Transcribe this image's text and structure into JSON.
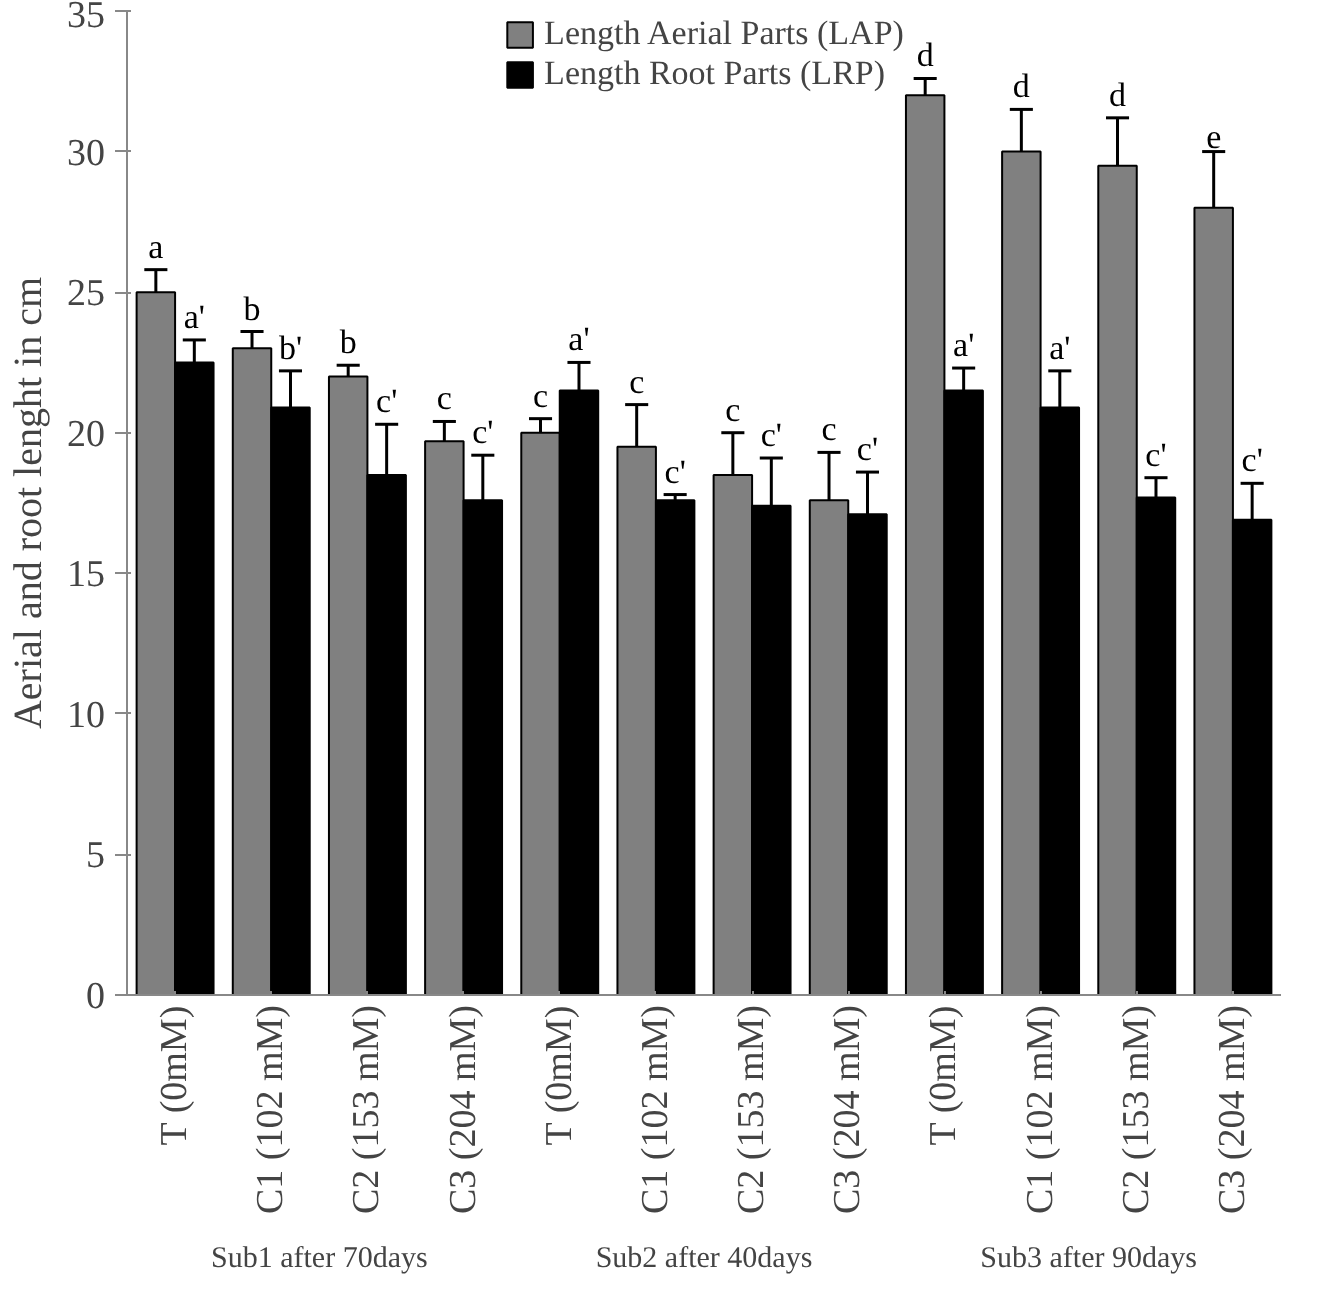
{
  "chart_data": {
    "type": "bar",
    "ylabel": "Aerial and root lenght in cm",
    "categories": [
      "T (0mM)",
      "C1 (102 mM)",
      "C2 (153 mM)",
      "C3 (204 mM)",
      "T (0mM)",
      "C1 (102 mM)",
      "C2 (153 mM)",
      "C3 (204 mM)",
      "T (0mM)",
      "C1 (102 mM)",
      "C2 (153 mM)",
      "C3 (204 mM)"
    ],
    "series": [
      {
        "name": "Length Aerial Parts (LAP)",
        "color": "#808080",
        "values": [
          25.0,
          23.0,
          22.0,
          19.7,
          20.0,
          19.5,
          18.5,
          17.6,
          32.0,
          30.0,
          29.5,
          28.0
        ],
        "errors": [
          0.8,
          0.6,
          0.4,
          0.7,
          0.5,
          1.5,
          1.5,
          1.7,
          0.6,
          1.5,
          1.7,
          2.0
        ],
        "value_labels": [
          "a",
          "b",
          "b",
          "c",
          "c",
          "c",
          "c",
          "c",
          "d",
          "d",
          "d",
          "e"
        ]
      },
      {
        "name": "Length Root Parts (LRP)",
        "color": "#000000",
        "values": [
          22.5,
          20.9,
          18.5,
          17.6,
          21.5,
          17.6,
          17.4,
          17.1,
          21.5,
          20.9,
          17.7,
          16.9
        ],
        "errors": [
          0.8,
          1.3,
          1.8,
          1.6,
          1.0,
          0.2,
          1.7,
          1.5,
          0.8,
          1.3,
          0.7,
          1.3
        ],
        "value_labels": [
          "a'",
          "b'",
          "c'",
          "c'",
          "a'",
          "c'",
          "c'",
          "c'",
          "a'",
          "a'",
          "c'",
          "c'"
        ]
      }
    ],
    "annotations": [
      "Sub1 after 70days",
      "Sub2 after 40days",
      "Sub3 after 90days"
    ],
    "ylim": [
      0,
      35
    ],
    "yticks": [
      0,
      5,
      10,
      15,
      20,
      25,
      30,
      35
    ],
    "grid": false,
    "legend": "top"
  }
}
